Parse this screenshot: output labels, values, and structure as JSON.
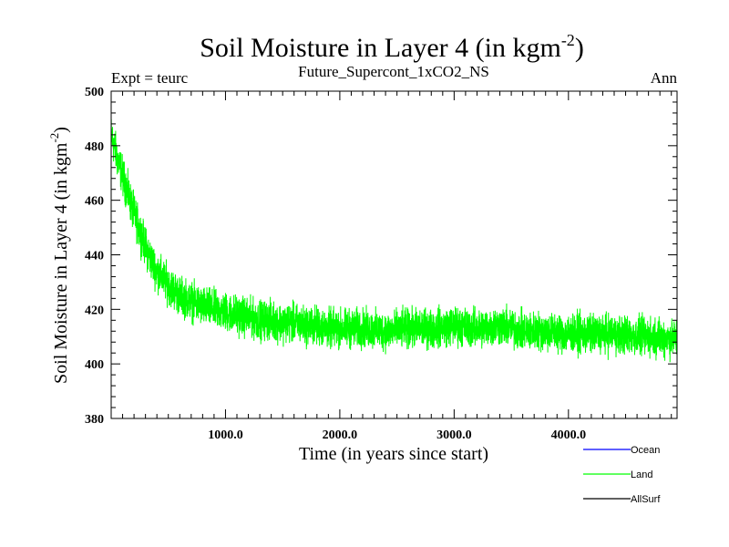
{
  "chart_data": {
    "type": "line",
    "title": {
      "main": "Soil Moisture in Layer 4 (in kgm",
      "sup": "-2",
      "close": ")"
    },
    "subtitle": "Future_Supercont_1xCO2_NS",
    "left_label": "Expt = teurc",
    "right_label": "Ann",
    "xlabel": "Time (in years since start)",
    "ylabel": {
      "main": "Soil Moisture in Layer 4 (in kgm",
      "sup": "-2",
      "close": ")"
    },
    "xlim": [
      0,
      4950
    ],
    "ylim": [
      380,
      500
    ],
    "x_ticks": [
      1000,
      2000,
      3000,
      4000
    ],
    "x_tick_labels": [
      "1000.0",
      "2000.0",
      "3000.0",
      "4000.0"
    ],
    "y_ticks": [
      380,
      400,
      420,
      440,
      460,
      480,
      500
    ],
    "y_tick_labels": [
      "380",
      "400",
      "420",
      "440",
      "460",
      "480",
      "500"
    ],
    "legend_position": "bottom-right",
    "series": [
      {
        "name": "Ocean",
        "color": "#0000ff",
        "x": [],
        "values": []
      },
      {
        "name": "Land",
        "color": "#00ff00",
        "x": [
          0,
          50,
          100,
          150,
          200,
          250,
          300,
          350,
          400,
          500,
          600,
          700,
          800,
          900,
          1000,
          1100,
          1200,
          1300,
          1400,
          1500,
          1600,
          1700,
          1800,
          1900,
          2000,
          2200,
          2400,
          2600,
          2800,
          3000,
          3200,
          3400,
          3600,
          3800,
          4000,
          4200,
          4400,
          4600,
          4800,
          4950
        ],
        "values": [
          484,
          476,
          469,
          462,
          455,
          449,
          443,
          438,
          434,
          429,
          425,
          423,
          421,
          420,
          419,
          418,
          417,
          416,
          416,
          415,
          415,
          414,
          414,
          413,
          413,
          413,
          412,
          413,
          413,
          414,
          413,
          414,
          412,
          412,
          411,
          411,
          411,
          410,
          410,
          409
        ],
        "noise_amplitude": 6
      },
      {
        "name": "AllSurf",
        "color": "#000000",
        "x": [],
        "values": []
      }
    ]
  }
}
